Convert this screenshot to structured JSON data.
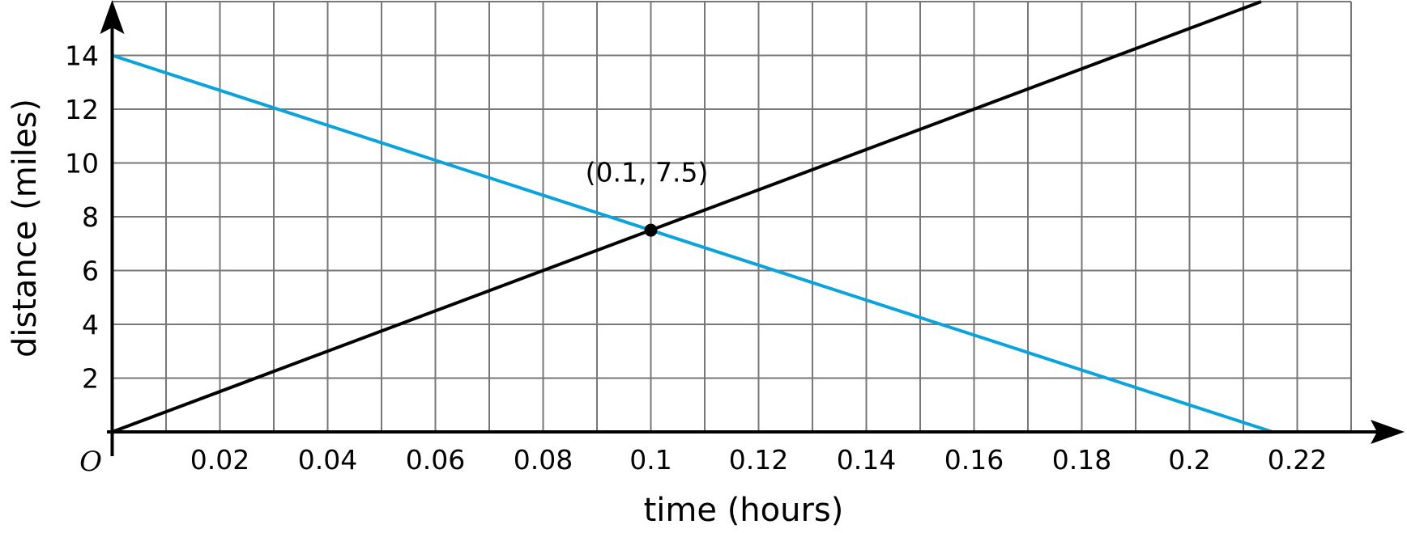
{
  "chart_data": {
    "type": "line",
    "title": "",
    "xlabel": "time (hours)",
    "ylabel": "distance (miles)",
    "origin_label": "O",
    "xlim": [
      0,
      0.23
    ],
    "ylim": [
      0,
      16
    ],
    "grid": true,
    "x_grid_step": 0.01,
    "y_grid_step": 2,
    "x_ticks": [
      0.02,
      0.04,
      0.06,
      0.08,
      0.1,
      0.12,
      0.14,
      0.16,
      0.18,
      0.2,
      0.22
    ],
    "x_tick_labels": [
      "0.02",
      "0.04",
      "0.06",
      "0.08",
      "0.1",
      "0.12",
      "0.14",
      "0.16",
      "0.18",
      "0.2",
      "0.22"
    ],
    "y_ticks": [
      2,
      4,
      6,
      8,
      10,
      12,
      14
    ],
    "y_tick_labels": [
      "2",
      "4",
      "6",
      "8",
      "10",
      "12",
      "14"
    ],
    "series": [
      {
        "color": "#000000",
        "x": [
          0,
          0.2133
        ],
        "y": [
          0,
          16
        ]
      },
      {
        "color": "#0ba3dc",
        "x": [
          0,
          0.2154
        ],
        "y": [
          14,
          0
        ]
      }
    ],
    "points": [
      {
        "x": 0.1,
        "y": 7.5,
        "label": "(0.1, 7.5)"
      }
    ]
  }
}
